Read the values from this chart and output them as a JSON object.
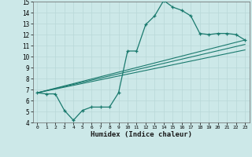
{
  "x": [
    0,
    1,
    2,
    3,
    4,
    5,
    6,
    7,
    8,
    9,
    10,
    11,
    12,
    13,
    14,
    15,
    16,
    17,
    18,
    19,
    20,
    21,
    22,
    23
  ],
  "y_main": [
    6.7,
    6.6,
    6.6,
    5.1,
    4.2,
    5.1,
    5.4,
    5.4,
    5.4,
    6.7,
    10.5,
    10.5,
    12.9,
    13.7,
    15.1,
    14.5,
    14.2,
    13.7,
    12.1,
    12.0,
    12.1,
    12.1,
    12.0,
    11.5
  ],
  "line1_x": [
    0,
    23
  ],
  "line1_y": [
    6.7,
    11.5
  ],
  "line2_x": [
    0,
    23
  ],
  "line2_y": [
    6.7,
    11.1
  ],
  "line3_x": [
    0,
    23
  ],
  "line3_y": [
    6.7,
    10.6
  ],
  "color": "#1a7a6e",
  "bg_color": "#cce8e8",
  "grid_color": "#b8d8d8",
  "xlabel": "Humidex (Indice chaleur)",
  "xlim": [
    -0.5,
    23.5
  ],
  "ylim": [
    4,
    15
  ],
  "yticks": [
    4,
    5,
    6,
    7,
    8,
    9,
    10,
    11,
    12,
    13,
    14,
    15
  ],
  "xticks": [
    0,
    1,
    2,
    3,
    4,
    5,
    6,
    7,
    8,
    9,
    10,
    11,
    12,
    13,
    14,
    15,
    16,
    17,
    18,
    19,
    20,
    21,
    22,
    23
  ]
}
